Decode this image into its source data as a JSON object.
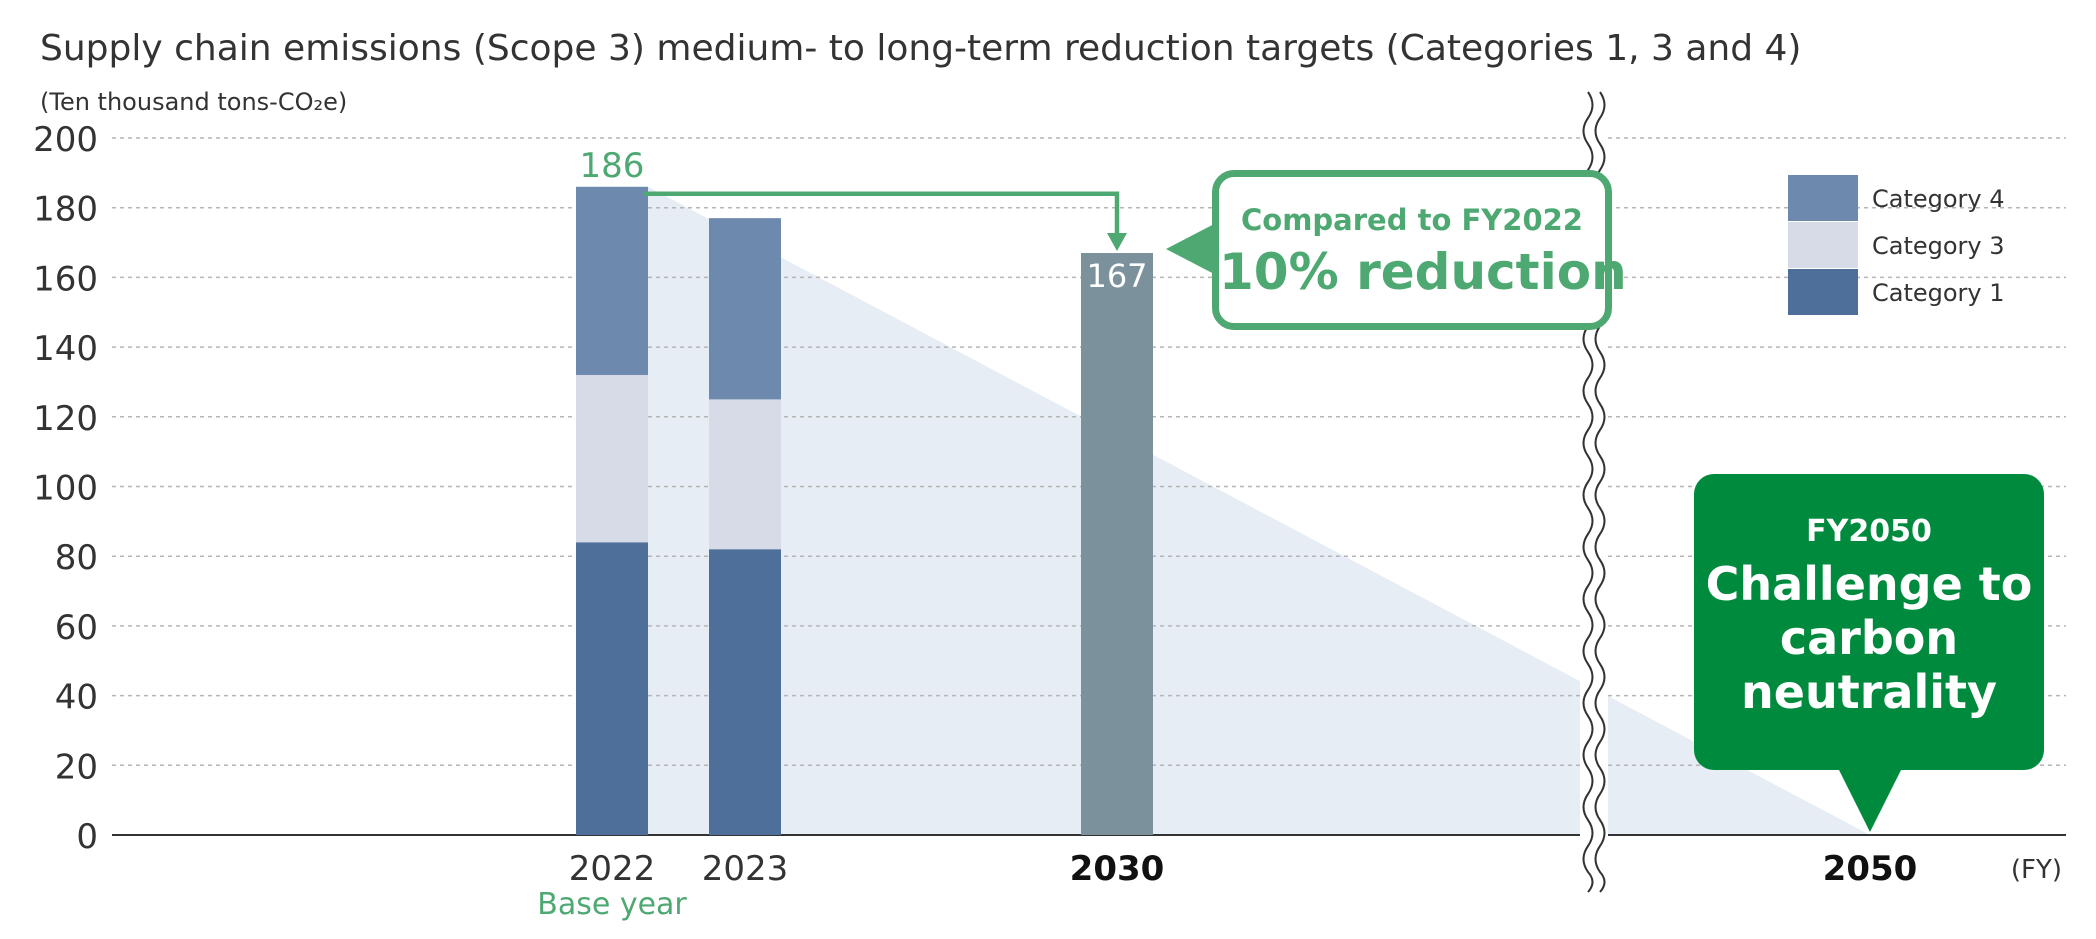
{
  "chart_data": {
    "type": "bar",
    "stacked": true,
    "title": "Supply chain emissions (Scope 3) medium- to long-term reduction targets (Categories 1, 3 and 4)",
    "ylabel": "(Ten thousand tons-CO₂e)",
    "xlabel": "(FY)",
    "ylim": [
      0,
      200
    ],
    "yticks": [
      "0",
      "20",
      "40",
      "60",
      "80",
      "100",
      "120",
      "140",
      "160",
      "180",
      "200"
    ],
    "grid": true,
    "legend_position": "top-right",
    "categories": [
      "2022",
      "2023",
      "2030",
      "2050"
    ],
    "category_sublabels": [
      "Base year",
      "",
      "",
      ""
    ],
    "series": [
      {
        "name": "Category 1",
        "color": "#4e6f9a",
        "values": [
          84,
          82,
          null,
          null
        ]
      },
      {
        "name": "Category 3",
        "color": "#d6dbe7",
        "values": [
          48,
          43,
          null,
          null
        ]
      },
      {
        "name": "Category 4",
        "color": "#6e89ae",
        "values": [
          54,
          52,
          null,
          null
        ]
      }
    ],
    "target": {
      "category": "2030",
      "value": 167,
      "label": "167",
      "color": "#7b929c"
    },
    "base_total": {
      "category": "2022",
      "value": 186,
      "label": "186"
    },
    "net_zero": {
      "category": "2050",
      "value": 0
    },
    "legend": [
      "Category 4",
      "Category 3",
      "Category 1"
    ]
  },
  "callout": {
    "subtitle": "Compared to FY2022",
    "headline": "10% reduction",
    "color": "#4ea872"
  },
  "goal": {
    "subtitle": "FY2050",
    "headline_lines": [
      "Challenge to",
      "carbon",
      "neutrality"
    ],
    "color": "#008a3e"
  }
}
